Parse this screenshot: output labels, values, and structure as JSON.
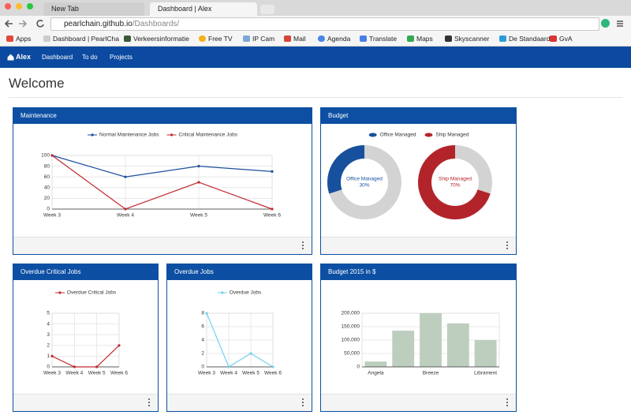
{
  "browser": {
    "tabs": [
      "New Tab",
      "Dashboard | Alex"
    ],
    "url_host": "pearlchain.github.io",
    "url_path": "/Dashboards/",
    "bookmarks": [
      "Apps",
      "Dashboard | PearlCha",
      "Verkeersinformatie",
      "Free TV",
      "IP Cam",
      "Mail",
      "Agenda",
      "Translate",
      "Maps",
      "Skyscanner",
      "De Standaard",
      "GvA"
    ]
  },
  "nav": {
    "brand": "Alex",
    "links": [
      "Dashboard",
      "To do",
      "Projects"
    ]
  },
  "heading": "Welcome",
  "chart_data": [
    {
      "type": "line",
      "title": "Maintenance",
      "categories": [
        "Week 3",
        "Week 4",
        "Week 5",
        "Week 6"
      ],
      "series": [
        {
          "name": "Normal Maintenance Jobs",
          "color": "#1c4f9c",
          "values": [
            100,
            60,
            80,
            70
          ]
        },
        {
          "name": "Critical Maintenance Jobs",
          "color": "#c3282e",
          "values": [
            100,
            0,
            50,
            0
          ]
        }
      ],
      "ylim": [
        0,
        100
      ],
      "yticks": [
        0,
        20,
        40,
        60,
        80,
        100
      ],
      "grid": true
    },
    {
      "type": "donut",
      "title": "Budget",
      "series": [
        {
          "name": "Office Managed",
          "color": "#17519e",
          "values": [
            30
          ],
          "value_labels": [
            "30%"
          ]
        },
        {
          "name": "Ship Managed",
          "color": "#b3242a",
          "values": [
            70
          ],
          "value_labels": [
            "70%"
          ]
        }
      ]
    },
    {
      "type": "line",
      "title": "Overdue Critical Jobs",
      "categories": [
        "Week 3",
        "Week 4",
        "Week 5",
        "Week 6"
      ],
      "series": [
        {
          "name": "Overdue Critical Jobs",
          "color": "#c3282e",
          "values": [
            1,
            0,
            0,
            2
          ]
        }
      ],
      "ylim": [
        0,
        5
      ],
      "yticks": [
        0,
        1,
        2,
        3,
        4,
        5
      ],
      "grid": true
    },
    {
      "type": "line",
      "title": "Overdue Jobs",
      "categories": [
        "Week 3",
        "Week 4",
        "Week 5",
        "Week 6"
      ],
      "series": [
        {
          "name": "Overdue Jobs",
          "color": "#74d1ef",
          "values": [
            8,
            0,
            2,
            0
          ]
        }
      ],
      "ylim": [
        0,
        8
      ],
      "yticks": [
        0,
        2,
        4,
        6,
        8
      ],
      "grid": true
    },
    {
      "type": "bar",
      "title": "Budget 2015 in $",
      "categories": [
        "Angela",
        null,
        "Breeze",
        null,
        "Librament"
      ],
      "values": [
        20000,
        135000,
        200000,
        162000,
        100000
      ],
      "color": "#bdcdbe",
      "ylim": [
        0,
        200000
      ],
      "yticks": [
        0,
        {
          "value": 50000,
          "label": "50,000"
        },
        {
          "value": 100000,
          "label": "100,000"
        },
        {
          "value": 150000,
          "label": "150,000"
        },
        {
          "value": 200000,
          "label": "200,000"
        }
      ],
      "grid": true
    }
  ]
}
